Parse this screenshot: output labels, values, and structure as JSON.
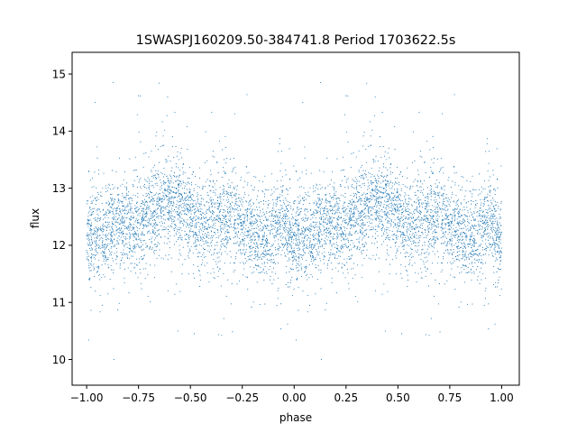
{
  "chart_data": {
    "type": "scatter",
    "title": "1SWASPJ160209.50-384741.8 Period 1703622.5s",
    "xlabel": "phase",
    "ylabel": "flux",
    "xlim": [
      -1.07,
      1.085
    ],
    "ylim": [
      9.55,
      15.38
    ],
    "x_ticks": [
      -1.0,
      -0.75,
      -0.5,
      -0.25,
      0.0,
      0.25,
      0.5,
      0.75,
      1.0
    ],
    "x_tick_labels": [
      "−1.00",
      "−0.75",
      "−0.50",
      "−0.25",
      "0.00",
      "0.25",
      "0.50",
      "0.75",
      "1.00"
    ],
    "y_ticks": [
      10,
      11,
      12,
      13,
      14,
      15
    ],
    "y_tick_labels": [
      "10",
      "11",
      "12",
      "13",
      "14",
      "15"
    ],
    "grid": false,
    "marker_color": "#1f77b4",
    "series": [
      {
        "phase_profile": [
          [
            0.0,
            12.05
          ],
          [
            0.04,
            12.25
          ],
          [
            0.08,
            12.15
          ],
          [
            0.12,
            12.3
          ],
          [
            0.16,
            12.45
          ],
          [
            0.2,
            12.35
          ],
          [
            0.25,
            12.3
          ],
          [
            0.3,
            12.6
          ],
          [
            0.35,
            12.65
          ],
          [
            0.4,
            12.75
          ],
          [
            0.45,
            12.7
          ],
          [
            0.5,
            12.45
          ],
          [
            0.55,
            12.3
          ],
          [
            0.6,
            12.4
          ],
          [
            0.65,
            12.45
          ],
          [
            0.7,
            12.55
          ],
          [
            0.75,
            12.35
          ],
          [
            0.8,
            12.1
          ],
          [
            0.85,
            12.15
          ],
          [
            0.9,
            12.3
          ],
          [
            0.95,
            12.5
          ],
          [
            1.0,
            12.05
          ]
        ]
      }
    ]
  }
}
